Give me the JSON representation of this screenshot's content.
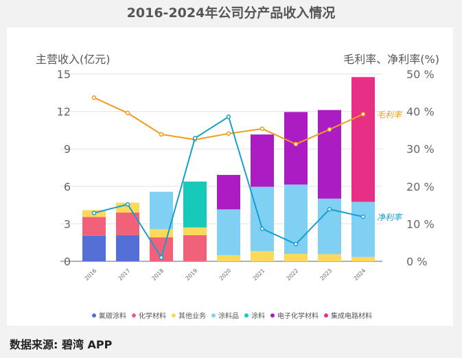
{
  "footer": {
    "source": "数据来源: 碧湾 APP"
  },
  "chart_data": {
    "type": "bar",
    "title": "2016-2024年公司分产品收入情况",
    "ylabel": "主营收入(亿元)",
    "y2label": "毛利率、净利率(%)",
    "ylim": [
      0,
      15
    ],
    "yticks": [
      0,
      3,
      6,
      9,
      12,
      15
    ],
    "y2lim": [
      0,
      50
    ],
    "y2ticks": [
      "0 %",
      "10 %",
      "20 %",
      "30 %",
      "40 %",
      "50 %"
    ],
    "grid": true,
    "legend": "bottom",
    "categories": [
      "2016",
      "2017",
      "2018",
      "2019",
      "2020",
      "2021",
      "2022",
      "2023",
      "2024"
    ],
    "series": [
      {
        "name": "氟碳涂料",
        "type": "bar",
        "color": "#5470d6",
        "values": [
          2.05,
          2.1,
          0,
          0,
          0,
          0,
          0,
          0,
          0
        ]
      },
      {
        "name": "化学材料",
        "type": "bar",
        "color": "#f2617a",
        "values": [
          1.5,
          1.8,
          1.92,
          2.09,
          0,
          0,
          0,
          0,
          0
        ]
      },
      {
        "name": "其他业务",
        "type": "bar",
        "color": "#fcd95a",
        "values": [
          0.55,
          0.8,
          0.65,
          0.62,
          0.48,
          0.82,
          0.6,
          0.57,
          0.35
        ]
      },
      {
        "name": "涂料品",
        "type": "bar",
        "color": "#80d0f4",
        "values": [
          0,
          0,
          3.0,
          0,
          3.68,
          5.15,
          5.55,
          4.45,
          4.41
        ]
      },
      {
        "name": "涂料",
        "type": "bar",
        "color": "#16c9b9",
        "values": [
          0,
          0,
          0,
          3.68,
          0,
          0,
          0,
          0,
          0
        ]
      },
      {
        "name": "电子化学材料",
        "type": "bar",
        "color": "#ab1dc3",
        "values": [
          0,
          0,
          0,
          0,
          2.76,
          4.19,
          5.81,
          7.1,
          0
        ]
      },
      {
        "name": "集成电路材料",
        "type": "bar",
        "color": "#e62f85",
        "values": [
          0,
          0,
          0,
          0,
          0,
          0,
          0,
          0,
          10.0
        ]
      },
      {
        "name": "毛利率",
        "type": "line",
        "axis": "right",
        "color": "#f29b1a",
        "values": [
          43.7,
          39.6,
          33.9,
          32.5,
          34.1,
          35.4,
          31.3,
          35.2,
          39.3
        ]
      },
      {
        "name": "净利率",
        "type": "line",
        "axis": "right",
        "color": "#149fcd",
        "values": [
          12.9,
          15.2,
          1.0,
          32.9,
          38.6,
          8.7,
          4.6,
          13.9,
          11.9
        ]
      }
    ]
  }
}
